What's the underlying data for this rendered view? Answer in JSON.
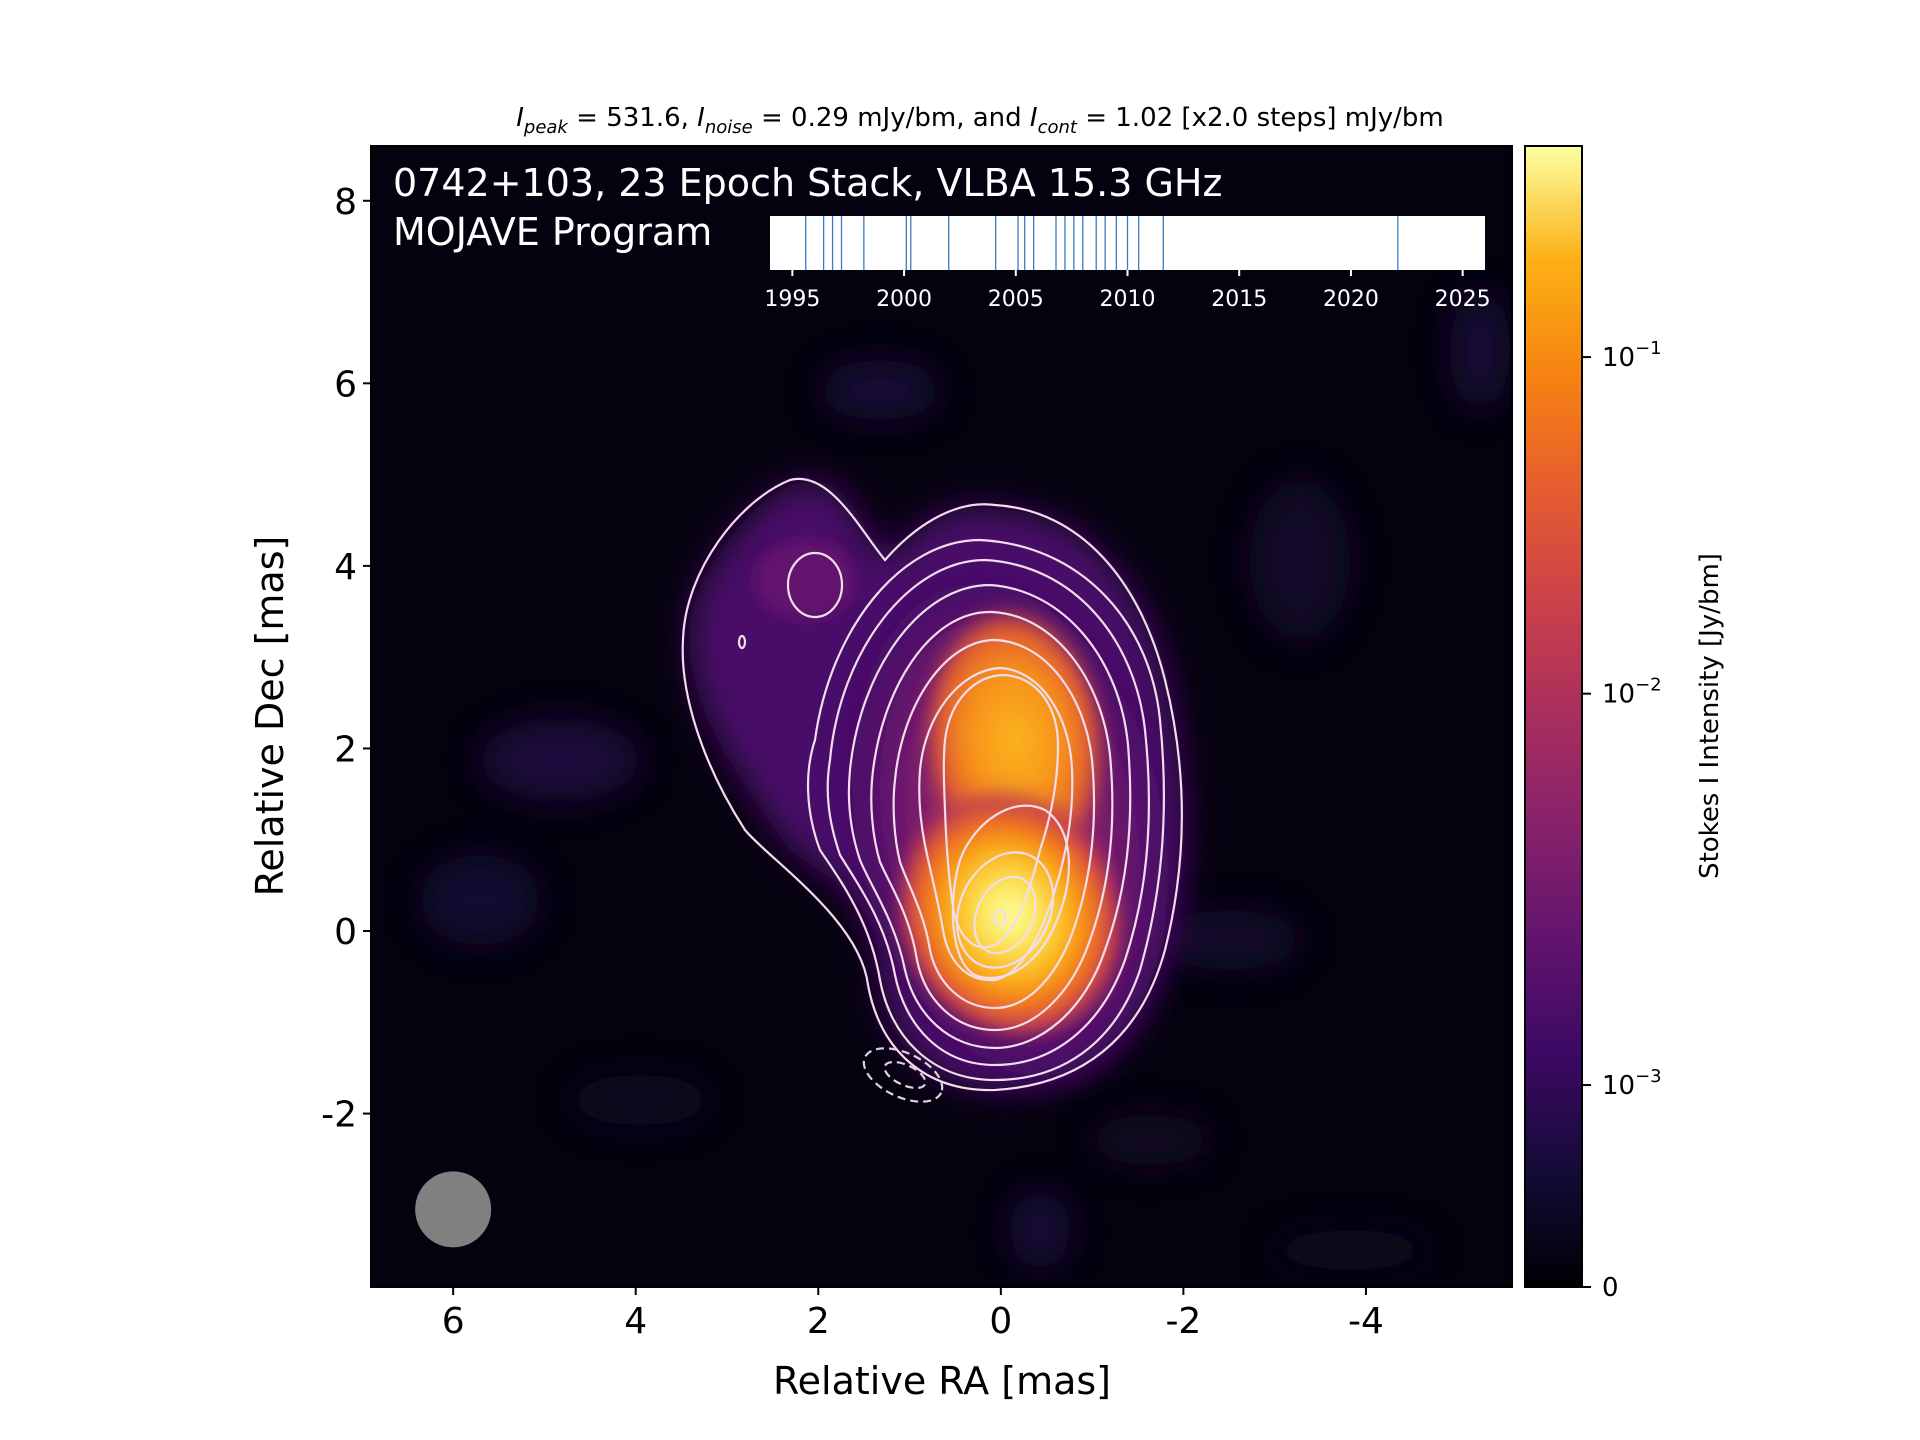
{
  "chart_data": {
    "type": "heatmap",
    "header": {
      "peak_symbol": "I",
      "peak_sub": "peak",
      "peak_value": "531.6",
      "noise_symbol": "I",
      "noise_sub": "noise",
      "noise_value": "0.29 mJy/bm",
      "and_text": "and",
      "cont_symbol": "I",
      "cont_sub": "cont",
      "cont_value": "1.02 [x2.0 steps] mJy/bm"
    },
    "annotation_line1": "0742+103, 23 Epoch Stack, VLBA 15.3 GHz",
    "annotation_line2": "MOJAVE Program",
    "xlabel": "Relative RA [mas]",
    "ylabel": "Relative Dec [mas]",
    "xlim": [
      6.9,
      -5.6
    ],
    "ylim": [
      -3.9,
      8.6
    ],
    "xticks": [
      "6",
      "4",
      "2",
      "0",
      "-2",
      "-4"
    ],
    "xtick_values": [
      6,
      4,
      2,
      0,
      -2,
      -4
    ],
    "yticks": [
      "8",
      "6",
      "4",
      "2",
      "0",
      "-2"
    ],
    "ytick_values": [
      8,
      6,
      4,
      2,
      0,
      -2
    ],
    "colorbar": {
      "label": "Stokes I Intensity [Jy/bm]",
      "scale": "log",
      "ticks": [
        {
          "base": "0",
          "exp": ""
        },
        {
          "base": "10",
          "exp": "−3"
        },
        {
          "base": "10",
          "exp": "−2"
        },
        {
          "base": "10",
          "exp": "−1"
        }
      ],
      "colormap": "inferno"
    },
    "epoch_timeline": {
      "tick_labels": [
        "1995",
        "2000",
        "2005",
        "2010",
        "2015",
        "2020",
        "2025"
      ],
      "tick_values": [
        1995,
        2000,
        2005,
        2010,
        2015,
        2020,
        2025
      ],
      "range": [
        1994,
        2026
      ],
      "epochs": [
        1995.6,
        1996.4,
        1996.8,
        1997.2,
        1998.2,
        2000.1,
        2000.3,
        2002.0,
        2004.1,
        2005.1,
        2005.4,
        2005.8,
        2006.8,
        2007.2,
        2007.6,
        2008.0,
        2008.6,
        2009.0,
        2009.5,
        2010.0,
        2010.5,
        2011.6,
        2022.1
      ]
    },
    "beam": {
      "ra": 6.0,
      "dec": -3.05,
      "major": 0.42,
      "minor": 0.42,
      "color": "#808080"
    },
    "source": "0742+103",
    "colors": {
      "contour": "#f3dcec",
      "contour_inner": "#ffffff",
      "negative_contour": "#d8d8d8",
      "epoch_line": "#3b7bbf"
    }
  }
}
